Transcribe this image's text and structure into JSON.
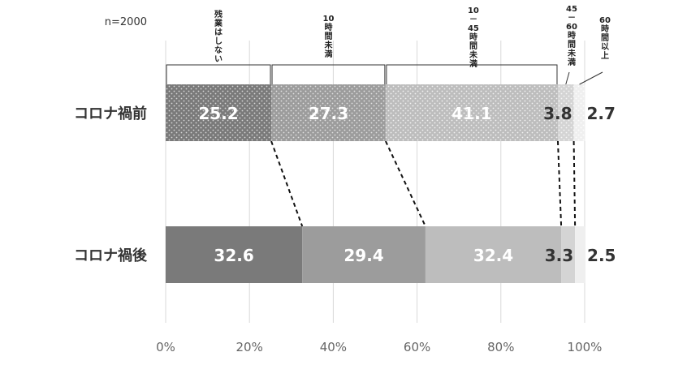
{
  "chart_data": {
    "type": "bar",
    "orientation": "horizontal",
    "stacked": true,
    "percent": true,
    "note": "n=2000",
    "categories": [
      "コロナ禍前",
      "コロナ禍後"
    ],
    "series": [
      {
        "name": "残業はしない",
        "values": [
          25.2,
          32.6
        ]
      },
      {
        "name": "10時間未満",
        "values": [
          27.3,
          29.4
        ]
      },
      {
        "name": "10－45時間未満",
        "values": [
          41.1,
          32.4
        ]
      },
      {
        "name": "45－60時間未満",
        "values": [
          3.8,
          3.3
        ]
      },
      {
        "name": "60時間以上",
        "values": [
          2.7,
          2.5
        ]
      }
    ],
    "xlim": [
      0,
      100
    ],
    "xticks": [
      "0%",
      "20%",
      "40%",
      "60%",
      "80%",
      "100%"
    ],
    "grid": true,
    "legend": "top"
  },
  "colors": {
    "before": [
      "#7a7a7a",
      "#9c9c9c",
      "#bdbdbd",
      "#d4d4d4",
      "#efefef"
    ],
    "after": [
      "#7a7a7a",
      "#9c9c9c",
      "#bdbdbd",
      "#d4d4d4",
      "#efefef"
    ],
    "label_inside": "#ffffff",
    "label_outside": "#333333",
    "grid": "#d9d9d9"
  }
}
